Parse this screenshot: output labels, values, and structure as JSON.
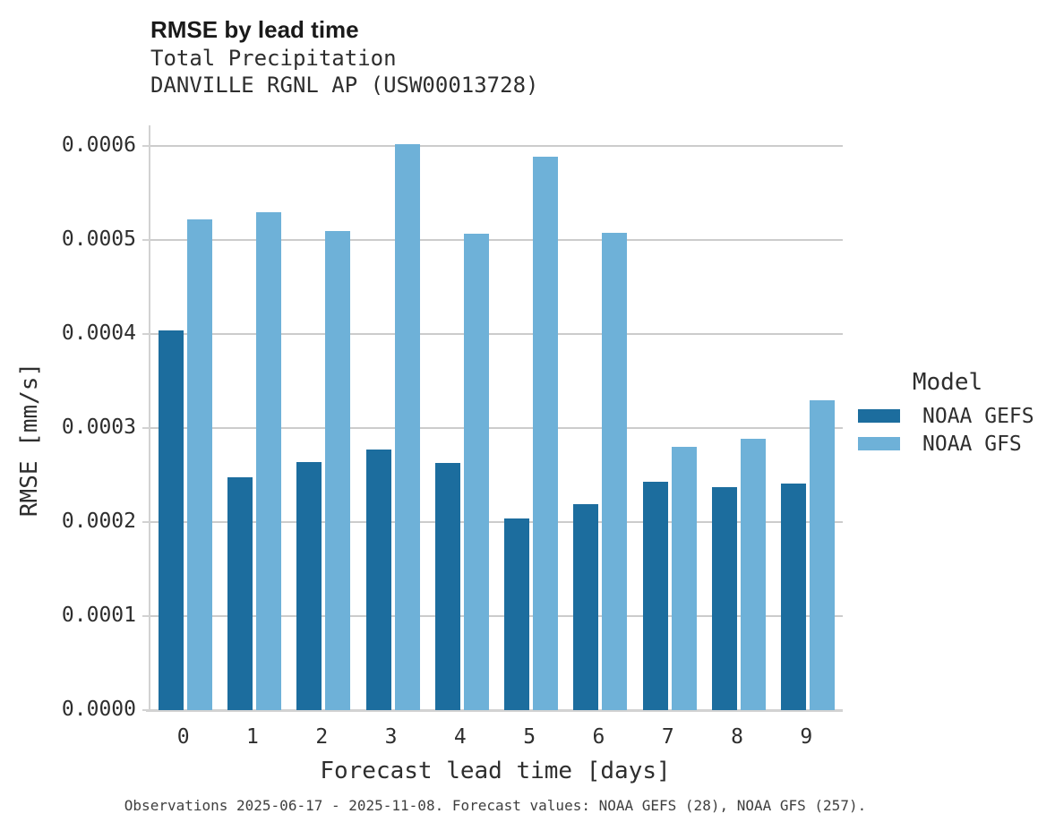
{
  "header": {
    "title": "RMSE by lead time",
    "subtitle_line1": "Total Precipitation",
    "subtitle_line2": "DANVILLE RGNL AP (USW00013728)"
  },
  "legend": {
    "title": "Model",
    "entries": [
      {
        "label": "NOAA GEFS",
        "color": "#1c6d9e"
      },
      {
        "label": "NOAA GFS",
        "color": "#6eb1d8"
      }
    ]
  },
  "footer": {
    "caption": "Observations 2025-06-17 - 2025-11-08. Forecast values: NOAA GEFS (28), NOAA GFS (257)."
  },
  "colors": {
    "noaa_gefs": "#1c6d9e",
    "noaa_gfs": "#6eb1d8",
    "gridline": "#cccccc",
    "axis_line": "#d2d2d2",
    "text": "#2e2e2e",
    "caption_text": "#3f3f3f"
  },
  "chart_data": {
    "type": "bar",
    "title": "RMSE by lead time",
    "subtitle": [
      "Total Precipitation",
      "DANVILLE RGNL AP (USW00013728)"
    ],
    "xlabel": "Forecast lead time [days]",
    "ylabel": "RMSE [mm/s]",
    "categories": [
      "0",
      "1",
      "2",
      "3",
      "4",
      "5",
      "6",
      "7",
      "8",
      "9"
    ],
    "series": [
      {
        "name": "NOAA GEFS",
        "color": "#1c6d9e",
        "values": [
          0.000404,
          0.000248,
          0.000264,
          0.000277,
          0.000263,
          0.000204,
          0.000219,
          0.000243,
          0.000237,
          0.000241
        ]
      },
      {
        "name": "NOAA GFS",
        "color": "#6eb1d8",
        "values": [
          0.000522,
          0.00053,
          0.00051,
          0.000602,
          0.000507,
          0.000589,
          0.000508,
          0.00028,
          0.000289,
          0.00033
        ]
      }
    ],
    "ylim": [
      0,
      0.000622
    ],
    "yticks": [
      0.0,
      0.0001,
      0.0002,
      0.0003,
      0.0004,
      0.0005,
      0.0006
    ],
    "ytick_labels": [
      "0.0000",
      "0.0001",
      "0.0002",
      "0.0003",
      "0.0004",
      "0.0005",
      "0.0006"
    ],
    "legend_title": "Model",
    "legend_position": "right",
    "grid": true
  }
}
